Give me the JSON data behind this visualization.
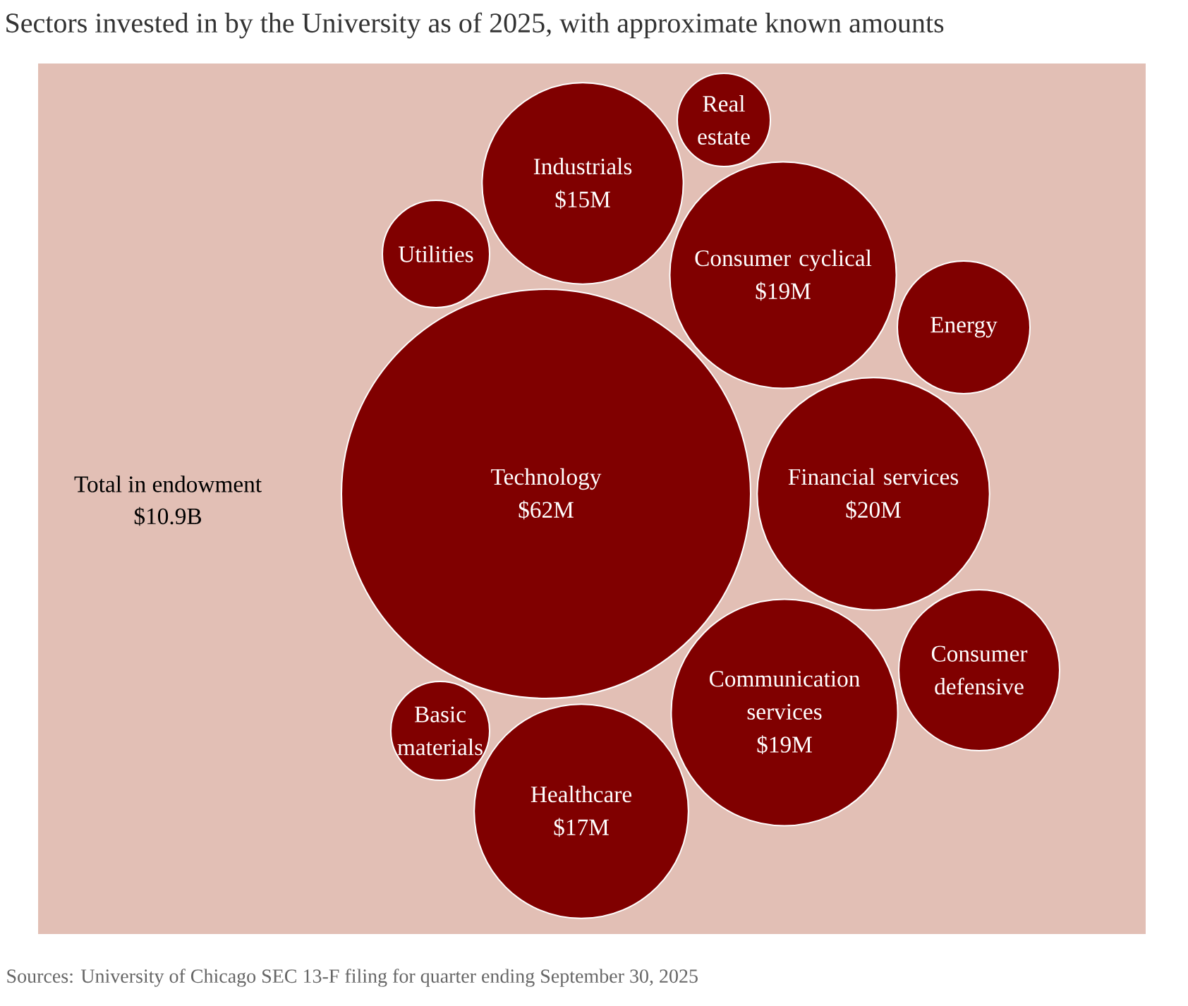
{
  "chart_data": {
    "type": "other",
    "title": "Sectors invested in by the University as of 2025, with approximate known amounts",
    "categories": [
      "Technology",
      "Industrials",
      "Real estate",
      "Utilities",
      "Consumer cyclical",
      "Energy",
      "Financial services",
      "Consumer defensive",
      "Communication services",
      "Basic materials",
      "Healthcare"
    ],
    "values": [
      62,
      15,
      null,
      null,
      19,
      null,
      20,
      null,
      19,
      null,
      17
    ],
    "value_labels": [
      "$62M",
      "$15M",
      null,
      null,
      "$19M",
      null,
      "$20M",
      null,
      "$19M",
      null,
      "$17M"
    ],
    "color": "#800000",
    "annotations": [
      "Total in endowment",
      "$10.9B",
      "Sources: University of Chicago SEC 13-F filing for quarter ending September 30, 2025"
    ]
  }
}
